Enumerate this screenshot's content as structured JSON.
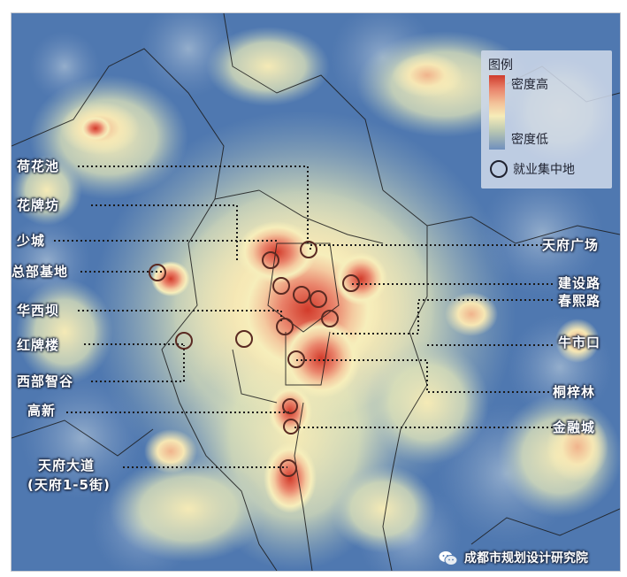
{
  "legend": {
    "title": "图例",
    "high_label": "密度高",
    "low_label": "密度低",
    "cluster_label": "就业集中地"
  },
  "labels_left": {
    "hehuachi": "荷花池",
    "huapaifang": "花牌坊",
    "shaocheng": "少城",
    "zongbu": "总部基地",
    "huaxiba": "华西坝",
    "hongpailou": "红牌楼",
    "xibu": "西部智谷",
    "gaoxin": "高新",
    "tianfu": "天府大道",
    "tianfu_sub": "(天府1-5街)"
  },
  "labels_right": {
    "tianfu_square": "天府广场",
    "jianshe": "建设路",
    "chunxi": "春熙路",
    "niushikou": "牛市口",
    "tongzilin": "桐梓林",
    "jinrongcheng": "金融城"
  },
  "credit": "成都市规划设计研究院",
  "icons": {
    "credit": "wechat-icon",
    "legend_marker": "ring-marker-icon"
  },
  "colors": {
    "background": "#4f78b0",
    "high": "#cf3b2d",
    "mid": "#f3c39a",
    "low": "#6f8fbd",
    "ring": "#5a2a22"
  }
}
